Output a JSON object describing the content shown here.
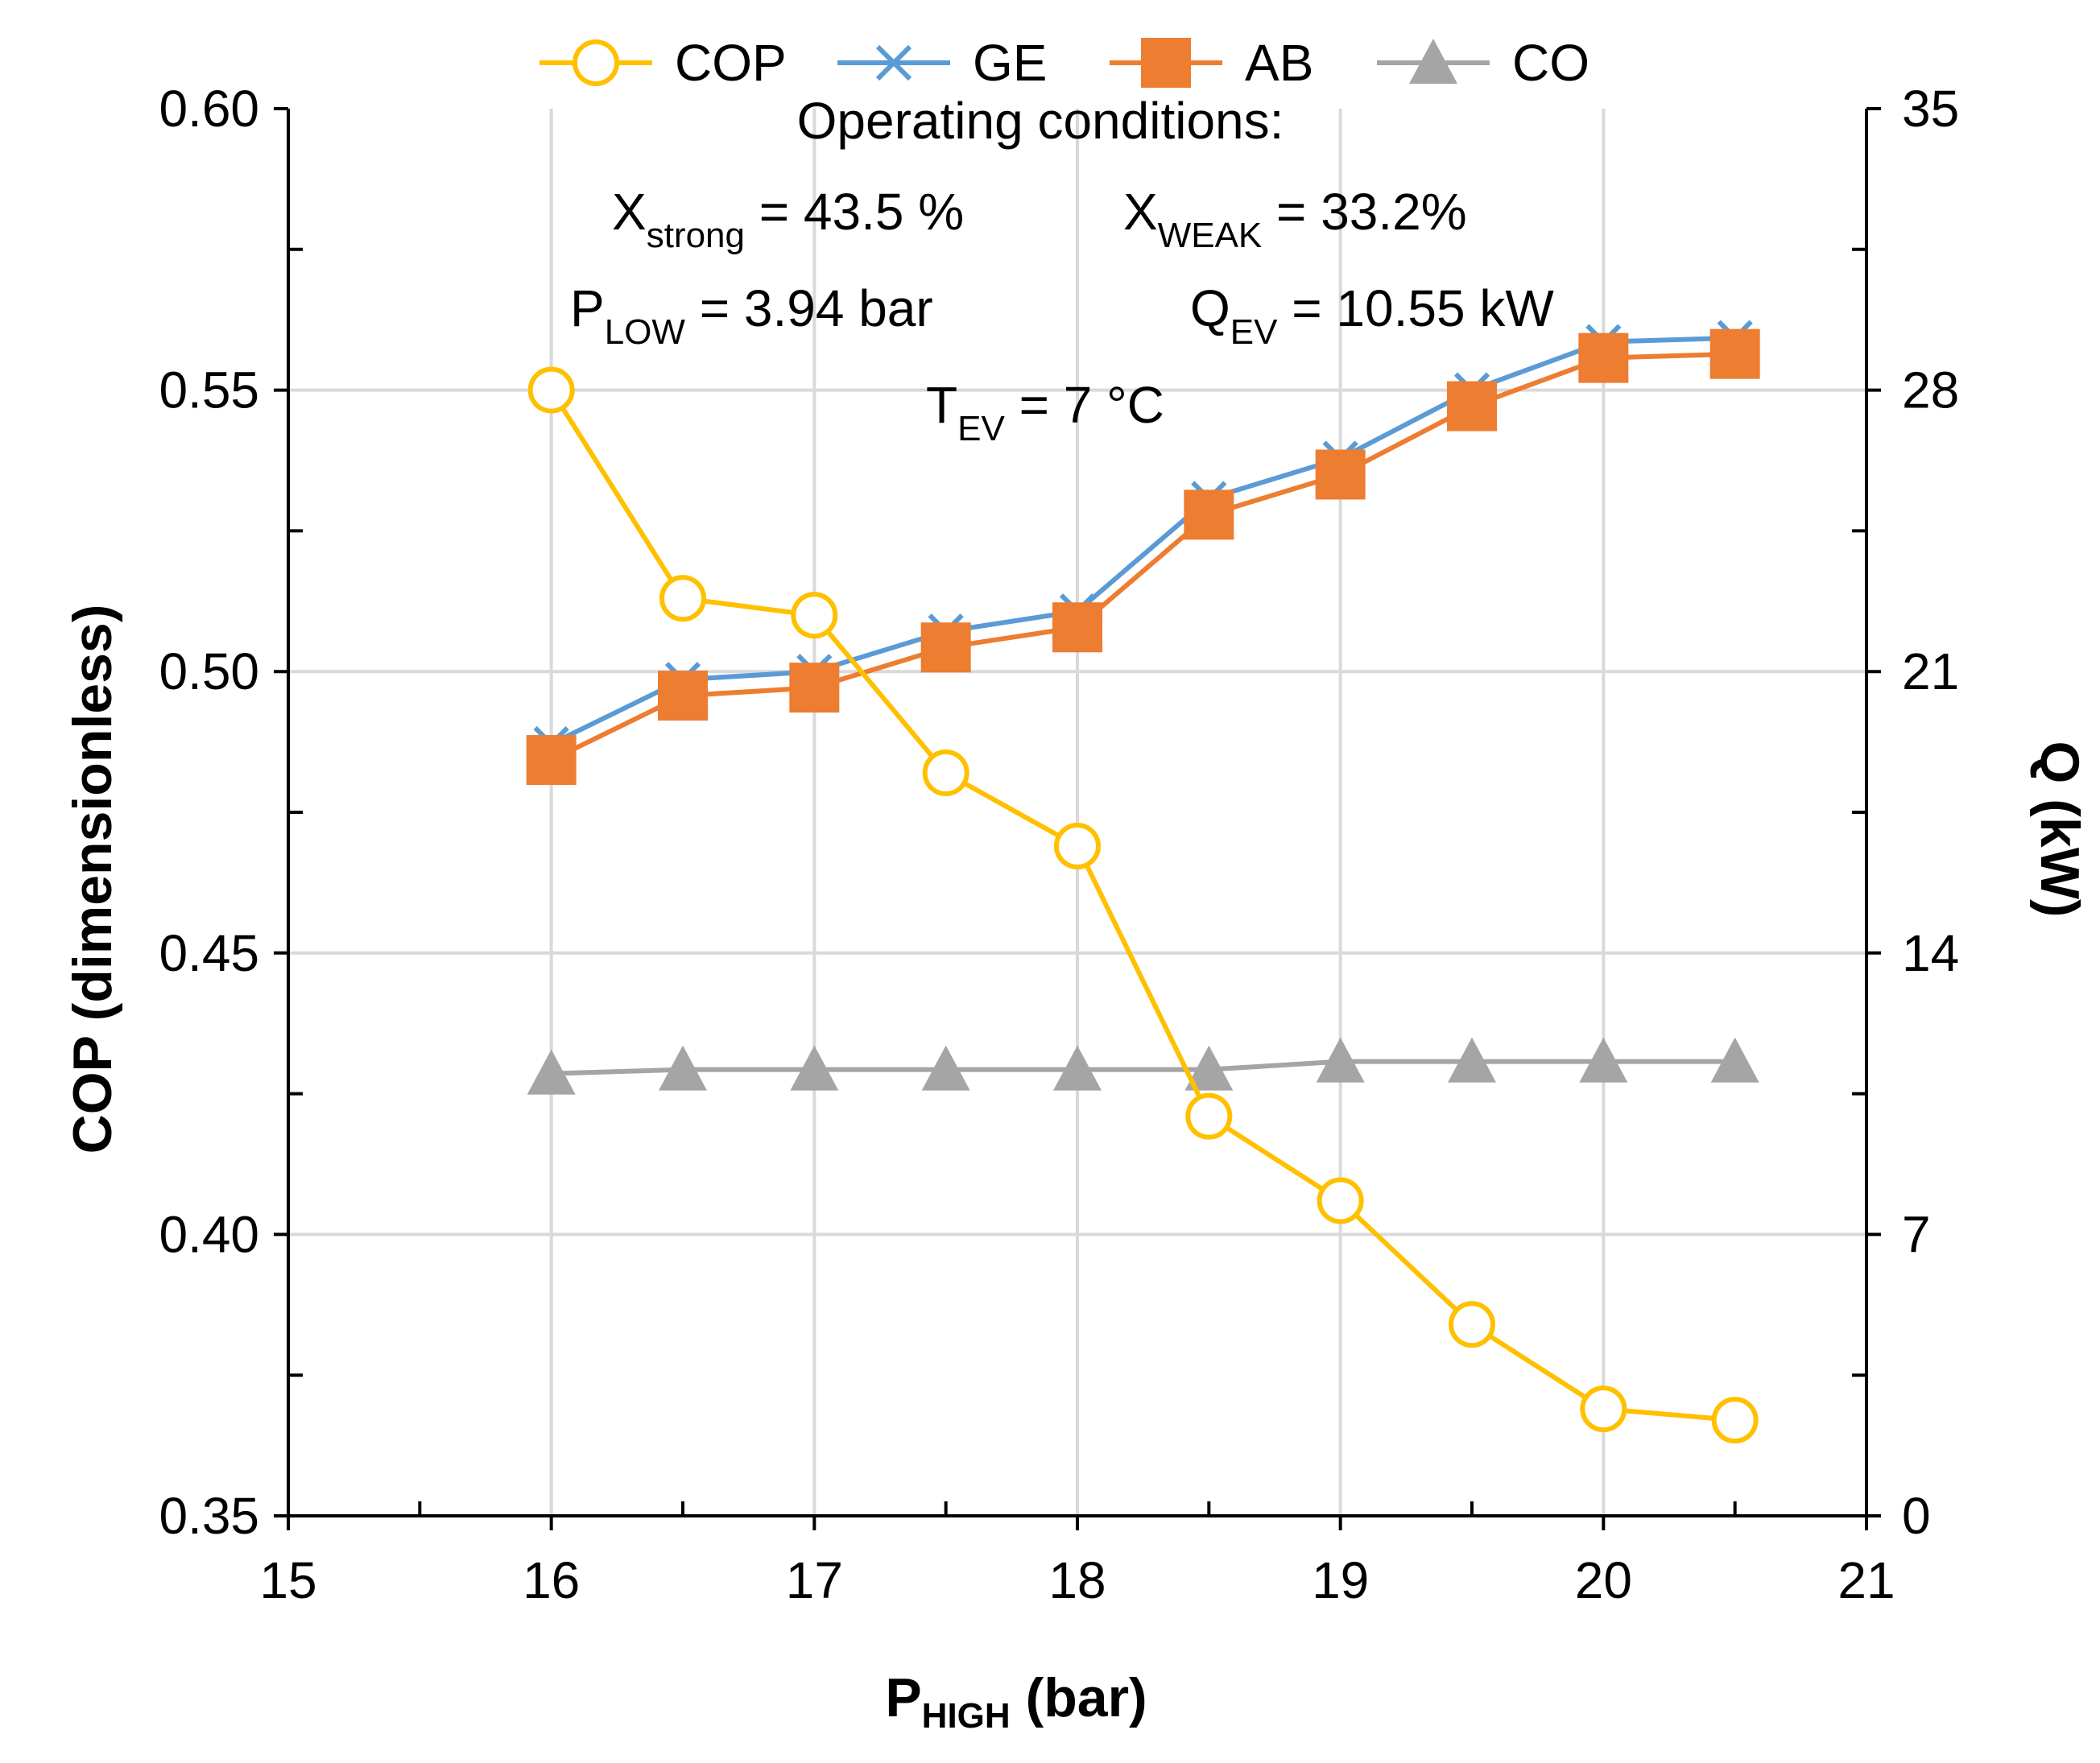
{
  "chart_data": {
    "type": "line",
    "x": [
      16,
      16.5,
      17,
      17.5,
      18,
      18.5,
      19,
      19.5,
      20,
      20.5
    ],
    "series": [
      {
        "name": "COP",
        "axis": "left",
        "color": "#FFC000",
        "marker": "open-circle",
        "values": [
          0.55,
          0.513,
          0.51,
          0.482,
          0.469,
          0.421,
          0.406,
          0.384,
          0.369,
          0.367
        ]
      },
      {
        "name": "GE",
        "axis": "right",
        "color": "#5B9BD5",
        "marker": "x",
        "values": [
          19.2,
          20.8,
          21.0,
          22.0,
          22.5,
          25.3,
          26.3,
          28.0,
          29.2,
          29.3
        ]
      },
      {
        "name": "AB",
        "axis": "right",
        "color": "#ED7D31",
        "marker": "square",
        "values": [
          18.8,
          20.4,
          20.6,
          21.6,
          22.1,
          24.9,
          25.9,
          27.6,
          28.8,
          28.9
        ]
      },
      {
        "name": "CO",
        "axis": "right",
        "color": "#A5A5A5",
        "marker": "triangle",
        "values": [
          11.0,
          11.1,
          11.1,
          11.1,
          11.1,
          11.1,
          11.3,
          11.3,
          11.3,
          11.3
        ]
      }
    ],
    "xlim": [
      15,
      21
    ],
    "x_ticks": [
      "15",
      "16",
      "17",
      "18",
      "19",
      "20",
      "21"
    ],
    "ylim_left": [
      0.35,
      0.6
    ],
    "y_ticks_left": [
      "0.35",
      "0.40",
      "0.45",
      "0.50",
      "0.55",
      "0.60"
    ],
    "ylim_right": [
      0,
      35
    ],
    "y_ticks_right": [
      "0",
      "7",
      "14",
      "21",
      "28",
      "35"
    ],
    "xlabel": {
      "main": "P",
      "sub": "HIGH",
      "tail": " (bar)"
    },
    "ylabel_left": "COP (dimensionless)",
    "ylabel_right": "Q (kW)",
    "grid": true,
    "legend_position": "top",
    "annotations": {
      "title": "Operating conditions:",
      "x_strong": {
        "main": "X",
        "sub": "strong",
        "tail": " = 43.5 %"
      },
      "x_weak": {
        "main": "X",
        "sub": "WEAK",
        "tail": " = 33.2%"
      },
      "p_low": {
        "main": "P",
        "sub": "LOW",
        "tail": " = 3.94 bar"
      },
      "q_ev": {
        "main": "Q",
        "sub": "EV",
        "tail": " = 10.55 kW"
      },
      "t_ev": {
        "main": "T",
        "sub": "EV",
        "tail": " = 7 °C"
      }
    }
  }
}
